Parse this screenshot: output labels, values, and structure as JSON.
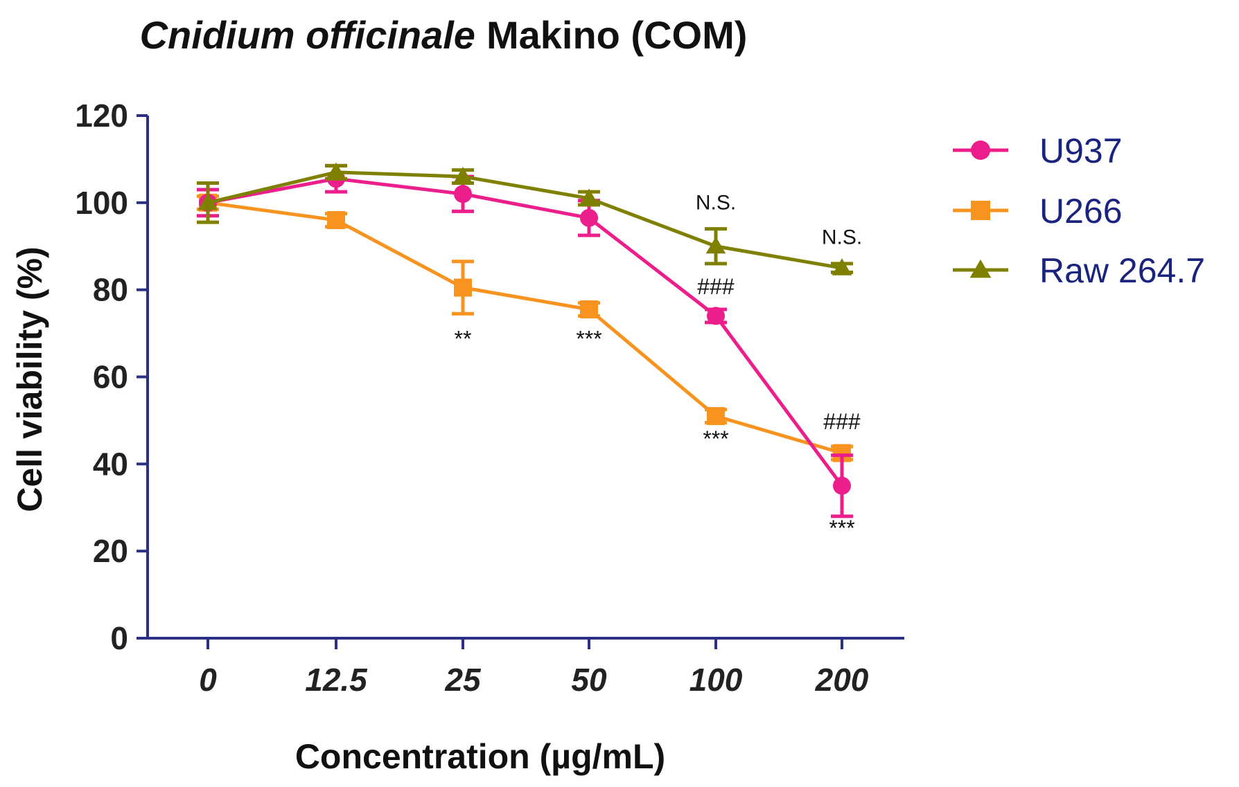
{
  "chart_data": {
    "type": "line",
    "title_italic": "Cnidium officinale",
    "title_rest": "Makino (COM)",
    "xlabel": "Concentration (µg/mL)",
    "ylabel": "Cell viability (%)",
    "ylim": [
      0,
      120
    ],
    "yticks": [
      0,
      20,
      40,
      60,
      80,
      100,
      120
    ],
    "categories": [
      "0",
      "12.5",
      "25",
      "50",
      "100",
      "200"
    ],
    "grid": false,
    "legend_position": "right",
    "series": [
      {
        "name": "U937",
        "color": "#ec1e8c",
        "marker": "circle",
        "values": [
          100,
          105.5,
          102,
          96.5,
          74,
          35
        ],
        "errors": [
          3,
          3,
          4,
          4,
          1.5,
          7
        ]
      },
      {
        "name": "U266",
        "color": "#f7931e",
        "marker": "square",
        "values": [
          100,
          96,
          80.5,
          75.5,
          51,
          42.5
        ],
        "errors": [
          1.5,
          1.5,
          6,
          1.5,
          1.5,
          1.5
        ]
      },
      {
        "name": "Raw 264.7",
        "color": "#808000",
        "marker": "triangle",
        "values": [
          100,
          107,
          106,
          101,
          90,
          85
        ],
        "errors": [
          4.5,
          1.5,
          1.5,
          1.5,
          4,
          1
        ]
      }
    ],
    "annotations": [
      {
        "text": "**",
        "category_index": 2,
        "value": 67,
        "kind": "star"
      },
      {
        "text": "***",
        "category_index": 3,
        "value": 67,
        "kind": "star"
      },
      {
        "text": "***",
        "category_index": 4,
        "value": 44,
        "kind": "star"
      },
      {
        "text": "***",
        "category_index": 5,
        "value": 23.5,
        "kind": "star"
      },
      {
        "text": "###",
        "category_index": 4,
        "value": 79,
        "kind": "hash"
      },
      {
        "text": "###",
        "category_index": 5,
        "value": 48,
        "kind": "hash"
      },
      {
        "text": "N.S.",
        "category_index": 4,
        "value": 98.5,
        "kind": "ns"
      },
      {
        "text": "N.S.",
        "category_index": 5,
        "value": 90.5,
        "kind": "ns"
      }
    ]
  }
}
